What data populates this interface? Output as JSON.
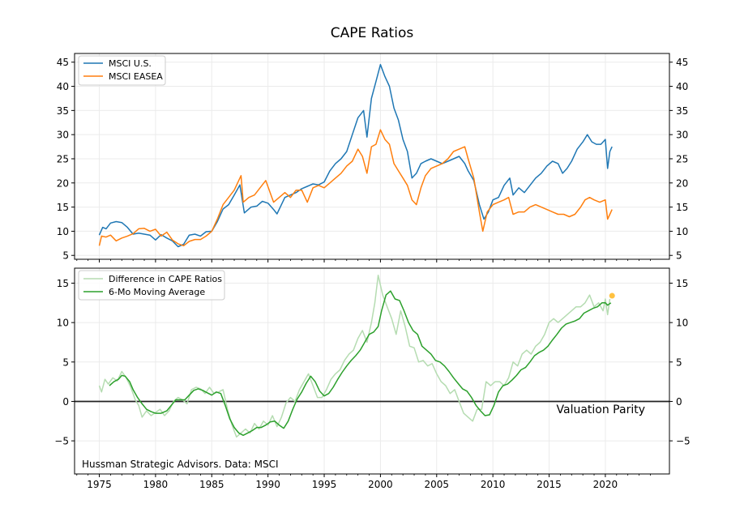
{
  "chart_data": [
    {
      "type": "line",
      "title": "CAPE Ratios",
      "xlabel": "",
      "ylabel": "",
      "xlim": [
        1972.8,
        2025.7
      ],
      "ylim": [
        4.2,
        46.8
      ],
      "x_ticks": [
        1975,
        1980,
        1985,
        1990,
        1995,
        2000,
        2005,
        2010,
        2015,
        2020
      ],
      "x_tick_labels": [
        "1975",
        "1980",
        "1985",
        "1990",
        "1995",
        "2000",
        "2005",
        "2010",
        "2015",
        "2020"
      ],
      "y_ticks": [
        5,
        10,
        15,
        20,
        25,
        30,
        35,
        40,
        45
      ],
      "y_tick_labels": [
        "5",
        "10",
        "15",
        "20",
        "25",
        "30",
        "35",
        "40",
        "45"
      ],
      "grid": true,
      "legend_position": "top-left",
      "series": [
        {
          "name": "MSCI U.S.",
          "color": "#1f77b4",
          "x": [
            1975.0,
            1975.3,
            1975.6,
            1976.0,
            1976.5,
            1977.0,
            1977.5,
            1978.0,
            1978.5,
            1979.0,
            1979.5,
            1980.0,
            1980.5,
            1981.0,
            1981.5,
            1982.0,
            1982.5,
            1983.0,
            1983.5,
            1984.0,
            1984.5,
            1985.0,
            1985.5,
            1986.0,
            1986.5,
            1987.0,
            1987.5,
            1987.9,
            1988.5,
            1989.0,
            1989.5,
            1990.0,
            1990.5,
            1990.8,
            1991.5,
            1992.0,
            1992.5,
            1993.0,
            1993.5,
            1994.0,
            1994.5,
            1995.0,
            1995.5,
            1996.0,
            1996.5,
            1997.0,
            1997.5,
            1998.0,
            1998.5,
            1998.8,
            1999.2,
            1999.6,
            2000.0,
            2000.4,
            2000.8,
            2001.2,
            2001.6,
            2002.0,
            2002.4,
            2002.8,
            2003.2,
            2003.6,
            2004.0,
            2004.5,
            2005.0,
            2005.5,
            2006.0,
            2006.5,
            2007.0,
            2007.5,
            2007.8,
            2008.3,
            2008.8,
            2009.2,
            2009.6,
            2010.0,
            2010.5,
            2011.0,
            2011.5,
            2011.8,
            2012.3,
            2012.8,
            2013.3,
            2013.8,
            2014.3,
            2014.8,
            2015.3,
            2015.8,
            2016.2,
            2016.6,
            2017.0,
            2017.5,
            2018.0,
            2018.4,
            2018.8,
            2019.2,
            2019.6,
            2020.0,
            2020.2,
            2020.4,
            2020.6
          ],
          "values": [
            9.2,
            10.8,
            10.5,
            11.7,
            12.0,
            11.8,
            10.8,
            9.4,
            9.6,
            9.4,
            9.2,
            8.2,
            9.3,
            8.6,
            8.0,
            6.8,
            7.3,
            9.2,
            9.4,
            9.0,
            9.9,
            10.0,
            12.0,
            14.6,
            15.5,
            17.5,
            19.6,
            13.8,
            15.0,
            15.2,
            16.2,
            15.8,
            14.5,
            13.6,
            17.0,
            17.5,
            18.0,
            18.8,
            19.3,
            19.8,
            19.6,
            20.2,
            22.5,
            24.0,
            25.0,
            26.5,
            30.0,
            33.5,
            35.0,
            29.5,
            37.5,
            41.0,
            44.5,
            42.0,
            40.0,
            35.5,
            33.0,
            29.0,
            26.5,
            21.0,
            22.0,
            24.0,
            24.5,
            25.0,
            24.5,
            24.0,
            24.5,
            25.0,
            25.5,
            24.0,
            22.5,
            20.5,
            15.5,
            12.5,
            14.0,
            16.5,
            17.0,
            19.5,
            21.0,
            17.5,
            19.0,
            18.0,
            19.5,
            21.0,
            22.0,
            23.5,
            24.5,
            24.0,
            22.0,
            23.0,
            24.5,
            27.0,
            28.5,
            30.0,
            28.5,
            28.0,
            28.0,
            29.0,
            23.0,
            26.5,
            27.5
          ]
        },
        {
          "name": "MSCI EASEA",
          "color": "#ff7f0e",
          "x": [
            1975.0,
            1975.2,
            1975.6,
            1976.0,
            1976.5,
            1977.0,
            1977.5,
            1978.0,
            1978.5,
            1979.0,
            1979.5,
            1980.0,
            1980.5,
            1981.0,
            1981.5,
            1982.0,
            1982.5,
            1983.0,
            1983.5,
            1984.0,
            1984.5,
            1985.0,
            1985.5,
            1986.0,
            1986.5,
            1987.0,
            1987.6,
            1987.8,
            1988.3,
            1988.8,
            1989.3,
            1989.8,
            1990.5,
            1991.0,
            1991.5,
            1992.0,
            1992.5,
            1993.0,
            1993.5,
            1994.0,
            1994.5,
            1995.0,
            1995.5,
            1996.0,
            1996.5,
            1997.0,
            1997.5,
            1998.0,
            1998.4,
            1998.8,
            1999.2,
            1999.6,
            2000.0,
            2000.4,
            2000.8,
            2001.2,
            2001.6,
            2002.0,
            2002.4,
            2002.8,
            2003.2,
            2003.6,
            2004.0,
            2004.5,
            2005.0,
            2005.5,
            2006.0,
            2006.5,
            2007.0,
            2007.5,
            2007.8,
            2008.3,
            2008.8,
            2009.1,
            2009.5,
            2010.0,
            2010.5,
            2011.0,
            2011.4,
            2011.8,
            2012.3,
            2012.8,
            2013.3,
            2013.8,
            2014.3,
            2014.8,
            2015.3,
            2015.8,
            2016.3,
            2016.8,
            2017.3,
            2017.8,
            2018.2,
            2018.6,
            2019.0,
            2019.5,
            2020.0,
            2020.2,
            2020.4,
            2020.6
          ],
          "values": [
            7.0,
            9.0,
            8.8,
            9.2,
            8.0,
            8.6,
            9.0,
            9.5,
            10.5,
            10.6,
            10.0,
            10.4,
            9.0,
            9.8,
            8.2,
            7.4,
            7.0,
            7.9,
            8.3,
            8.3,
            9.0,
            10.0,
            12.5,
            15.5,
            17.0,
            18.5,
            21.5,
            16.0,
            17.0,
            17.5,
            19.0,
            20.5,
            16.0,
            17.0,
            18.0,
            17.0,
            18.5,
            18.5,
            16.0,
            19.0,
            19.5,
            19.0,
            20.0,
            21.0,
            22.0,
            23.5,
            24.5,
            27.0,
            25.5,
            22.0,
            27.5,
            28.0,
            31.0,
            29.0,
            28.0,
            24.0,
            22.5,
            21.0,
            19.5,
            16.5,
            15.5,
            19.0,
            21.5,
            23.0,
            23.5,
            24.0,
            25.0,
            26.5,
            27.0,
            27.5,
            25.0,
            21.0,
            14.0,
            10.0,
            14.0,
            15.5,
            16.0,
            16.5,
            17.0,
            13.5,
            14.0,
            14.0,
            15.0,
            15.5,
            15.0,
            14.5,
            14.0,
            13.5,
            13.5,
            13.0,
            13.5,
            15.0,
            16.5,
            17.0,
            16.5,
            16.0,
            16.5,
            12.5,
            13.5,
            14.5
          ]
        }
      ]
    },
    {
      "type": "line",
      "title": "",
      "xlabel": "",
      "ylabel": "",
      "xlim": [
        1972.8,
        2025.7
      ],
      "ylim": [
        -9.2,
        16.9
      ],
      "x_ticks": [
        1975,
        1980,
        1985,
        1990,
        1995,
        2000,
        2005,
        2010,
        2015,
        2020
      ],
      "x_tick_labels": [
        "1975",
        "1980",
        "1985",
        "1990",
        "1995",
        "2000",
        "2005",
        "2010",
        "2015",
        "2020"
      ],
      "y_ticks": [
        -5,
        0,
        5,
        10,
        15
      ],
      "y_tick_labels": [
        "−5",
        "0",
        "5",
        "10",
        "15"
      ],
      "grid": true,
      "legend_position": "top-left",
      "hline": {
        "y": 0,
        "color": "#222222",
        "label": "Valuation Parity"
      },
      "annotations": [
        "Valuation Parity",
        "Hussman Strategic Advisors. Data: MSCI"
      ],
      "series": [
        {
          "name": "Difference in CAPE Ratios",
          "color": "#b5dcb1",
          "x": [
            1975.0,
            1975.2,
            1975.5,
            1975.8,
            1976.2,
            1976.6,
            1977.0,
            1977.4,
            1977.8,
            1978.2,
            1978.5,
            1978.8,
            1979.2,
            1979.6,
            1980.0,
            1980.4,
            1980.8,
            1981.2,
            1981.6,
            1982.0,
            1982.4,
            1982.8,
            1983.2,
            1983.6,
            1984.0,
            1984.4,
            1984.8,
            1985.2,
            1985.6,
            1986.0,
            1986.4,
            1986.8,
            1987.2,
            1987.6,
            1988.0,
            1988.4,
            1988.8,
            1989.2,
            1989.6,
            1990.0,
            1990.4,
            1990.8,
            1991.2,
            1991.6,
            1992.0,
            1992.4,
            1992.8,
            1993.2,
            1993.6,
            1994.0,
            1994.4,
            1994.8,
            1995.2,
            1995.6,
            1996.0,
            1996.4,
            1996.8,
            1997.2,
            1997.6,
            1998.0,
            1998.4,
            1998.8,
            1999.2,
            1999.5,
            1999.8,
            2000.2,
            2000.6,
            2001.0,
            2001.4,
            2001.8,
            2002.2,
            2002.6,
            2003.0,
            2003.4,
            2003.8,
            2004.2,
            2004.6,
            2005.0,
            2005.4,
            2005.8,
            2006.2,
            2006.6,
            2007.0,
            2007.4,
            2007.8,
            2008.2,
            2008.6,
            2009.0,
            2009.4,
            2009.8,
            2010.2,
            2010.6,
            2011.0,
            2011.4,
            2011.8,
            2012.2,
            2012.6,
            2013.0,
            2013.4,
            2013.8,
            2014.2,
            2014.6,
            2015.0,
            2015.4,
            2015.8,
            2016.2,
            2016.6,
            2017.0,
            2017.4,
            2017.8,
            2018.2,
            2018.6,
            2019.0,
            2019.4,
            2019.8,
            2020.0,
            2020.2,
            2020.4
          ],
          "values": [
            2.0,
            1.2,
            2.8,
            2.2,
            3.0,
            2.6,
            3.8,
            3.0,
            1.8,
            0.2,
            -0.5,
            -2.0,
            -1.2,
            -1.8,
            -1.4,
            -1.0,
            -1.8,
            -1.2,
            0.0,
            0.5,
            0.2,
            -0.3,
            1.5,
            1.8,
            1.6,
            1.0,
            1.8,
            1.0,
            1.2,
            1.5,
            -1.0,
            -3.0,
            -4.5,
            -4.0,
            -3.5,
            -4.0,
            -2.8,
            -3.5,
            -2.5,
            -3.0,
            -1.8,
            -3.2,
            -2.0,
            -0.2,
            0.5,
            0.0,
            1.5,
            2.5,
            3.5,
            2.0,
            0.5,
            0.5,
            1.5,
            2.8,
            3.5,
            4.0,
            5.2,
            6.0,
            6.5,
            8.0,
            9.0,
            7.5,
            10.0,
            12.5,
            16.0,
            13.5,
            12.0,
            10.5,
            8.5,
            11.5,
            9.5,
            7.0,
            6.8,
            5.0,
            5.2,
            4.5,
            4.8,
            3.5,
            2.5,
            2.0,
            1.0,
            1.5,
            0.0,
            -1.5,
            -2.0,
            -2.5,
            -1.0,
            -1.0,
            2.5,
            2.0,
            2.5,
            2.5,
            2.0,
            3.0,
            5.0,
            4.5,
            6.0,
            6.5,
            6.0,
            7.0,
            7.5,
            8.5,
            10.0,
            10.5,
            10.0,
            10.5,
            11.0,
            11.5,
            12.0,
            12.0,
            12.5,
            13.5,
            12.0,
            12.5,
            11.5,
            13.0,
            11.0,
            13.0
          ]
        },
        {
          "name": "6-Mo Moving Average",
          "color": "#2ca02c",
          "x": [
            1975.9,
            1976.3,
            1976.7,
            1977.0,
            1977.3,
            1977.7,
            1978.0,
            1978.4,
            1978.8,
            1979.2,
            1979.6,
            1980.0,
            1980.5,
            1981.0,
            1981.4,
            1981.8,
            1982.2,
            1982.6,
            1983.0,
            1983.4,
            1983.8,
            1984.2,
            1984.6,
            1985.0,
            1985.4,
            1985.8,
            1986.2,
            1986.6,
            1987.0,
            1987.4,
            1987.8,
            1988.2,
            1988.6,
            1989.0,
            1989.4,
            1989.8,
            1990.2,
            1990.6,
            1991.0,
            1991.4,
            1991.8,
            1992.2,
            1992.6,
            1993.0,
            1993.4,
            1993.8,
            1994.2,
            1994.6,
            1995.0,
            1995.4,
            1995.8,
            1996.2,
            1996.6,
            1997.0,
            1997.4,
            1997.8,
            1998.2,
            1998.6,
            1999.0,
            1999.4,
            1999.8,
            2000.1,
            2000.5,
            2000.9,
            2001.3,
            2001.7,
            2002.1,
            2002.5,
            2002.9,
            2003.3,
            2003.7,
            2004.1,
            2004.5,
            2004.9,
            2005.3,
            2005.7,
            2006.1,
            2006.5,
            2006.9,
            2007.3,
            2007.7,
            2008.1,
            2008.5,
            2008.9,
            2009.3,
            2009.7,
            2010.1,
            2010.5,
            2010.9,
            2011.3,
            2011.7,
            2012.1,
            2012.5,
            2012.9,
            2013.3,
            2013.7,
            2014.1,
            2014.5,
            2014.9,
            2015.3,
            2015.7,
            2016.1,
            2016.5,
            2016.9,
            2017.3,
            2017.7,
            2018.1,
            2018.5,
            2018.9,
            2019.3,
            2019.7,
            2020.0,
            2020.2,
            2020.5
          ],
          "values": [
            2.0,
            2.5,
            2.8,
            3.3,
            3.2,
            2.5,
            1.5,
            0.5,
            -0.3,
            -1.0,
            -1.3,
            -1.5,
            -1.5,
            -1.2,
            -0.5,
            0.2,
            0.2,
            0.2,
            0.8,
            1.4,
            1.6,
            1.4,
            1.1,
            0.8,
            1.2,
            1.0,
            -0.5,
            -2.2,
            -3.3,
            -4.0,
            -4.3,
            -4.0,
            -3.7,
            -3.3,
            -3.3,
            -3.0,
            -2.6,
            -2.5,
            -3.0,
            -3.4,
            -2.5,
            -1.0,
            0.3,
            1.2,
            2.3,
            3.2,
            2.5,
            1.3,
            0.7,
            1.0,
            1.8,
            2.8,
            3.7,
            4.5,
            5.2,
            5.8,
            6.5,
            7.5,
            8.5,
            8.8,
            9.5,
            11.5,
            13.5,
            14.0,
            13.0,
            12.8,
            11.5,
            10.0,
            9.0,
            8.5,
            7.0,
            6.5,
            6.0,
            5.2,
            5.0,
            4.5,
            3.8,
            3.0,
            2.3,
            1.6,
            1.3,
            0.5,
            -0.5,
            -1.2,
            -1.8,
            -1.7,
            -0.5,
            1.2,
            2.0,
            2.2,
            2.7,
            3.3,
            4.0,
            4.3,
            5.0,
            5.8,
            6.2,
            6.5,
            7.0,
            7.8,
            8.5,
            9.3,
            9.8,
            10.0,
            10.2,
            10.5,
            11.2,
            11.5,
            11.8,
            12.0,
            12.5,
            12.5,
            12.2,
            12.5
          ],
          "last_point": {
            "x": 2020.6,
            "y": 13.4,
            "color": "#ffb61e"
          }
        }
      ]
    }
  ]
}
